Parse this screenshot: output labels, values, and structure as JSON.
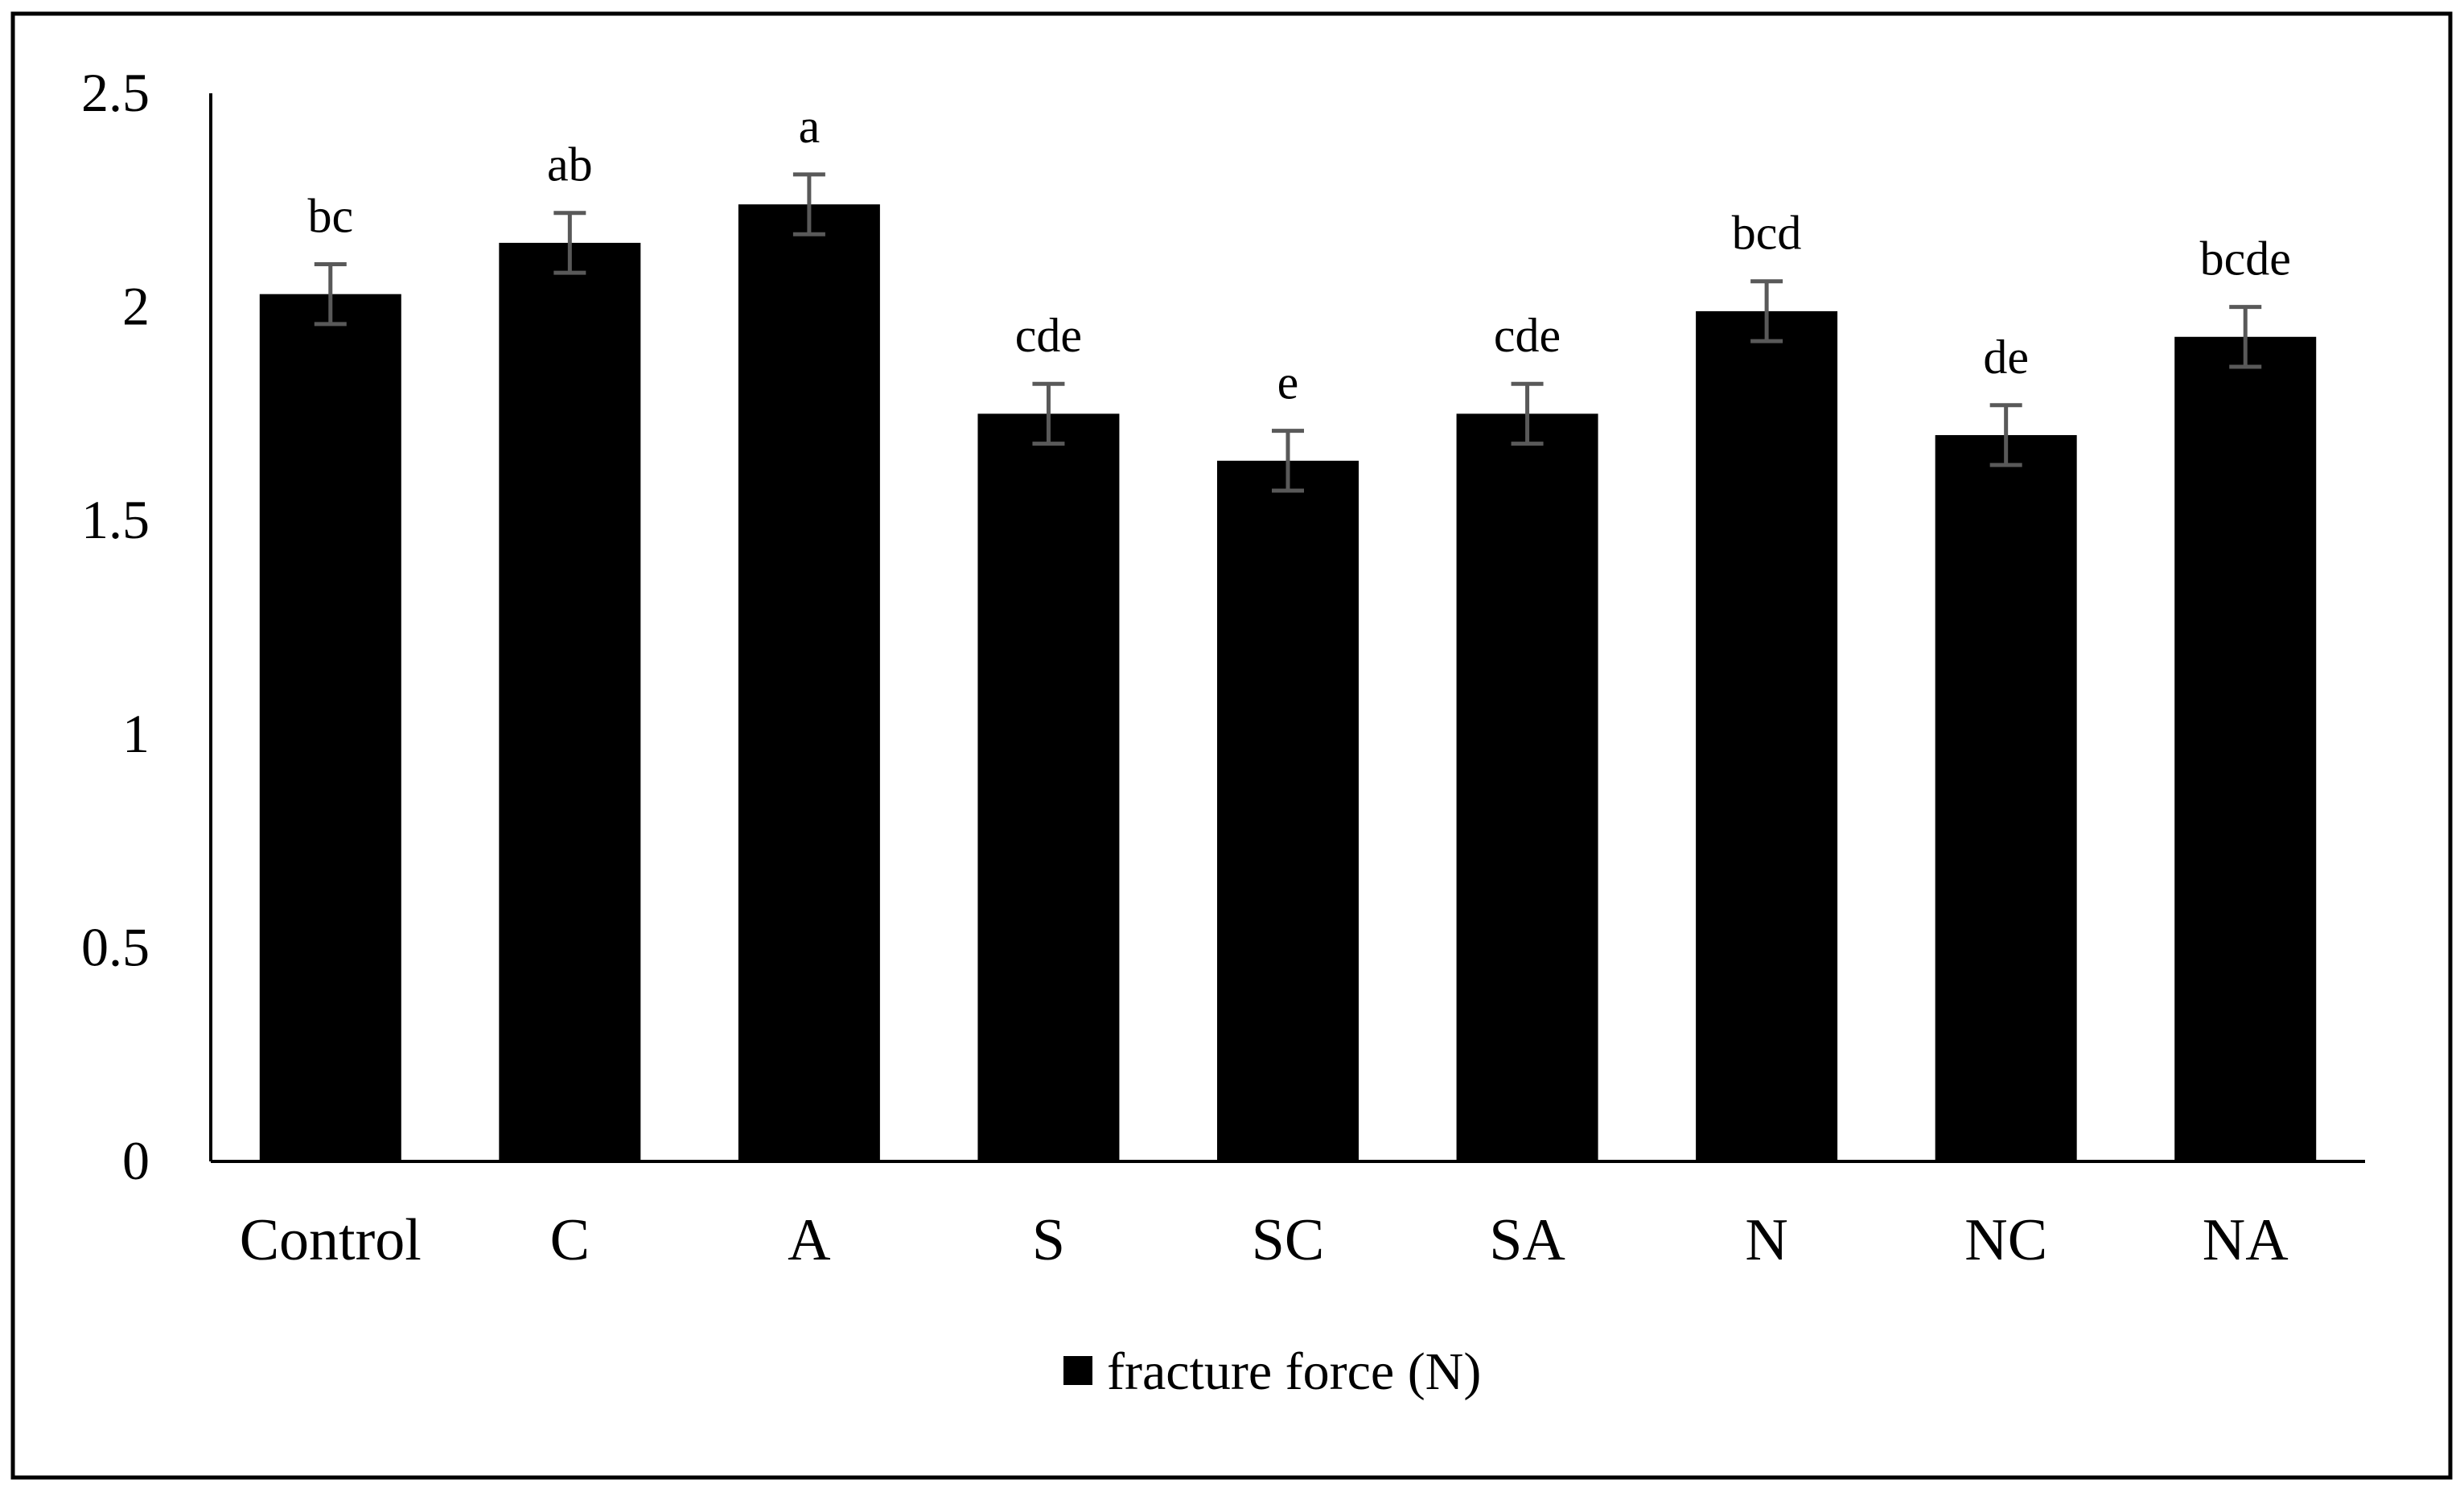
{
  "chart_data": {
    "type": "bar",
    "categories": [
      "Control",
      "C",
      "A",
      "S",
      "SC",
      "SA",
      "N",
      "NC",
      "NA"
    ],
    "series": [
      {
        "name": "fracture force (N)",
        "values": [
          2.03,
          2.15,
          2.24,
          1.75,
          1.64,
          1.75,
          1.99,
          1.7,
          1.93
        ],
        "errors": [
          0.07,
          0.07,
          0.07,
          0.07,
          0.07,
          0.07,
          0.07,
          0.07,
          0.07
        ],
        "significance": [
          "bc",
          "ab",
          "a",
          "cde",
          "e",
          "cde",
          "bcd",
          "de",
          "bcde"
        ]
      }
    ],
    "ylim": [
      0,
      2.5
    ],
    "yticks": [
      "0",
      "0.5",
      "1",
      "1.5",
      "2",
      "2.5"
    ],
    "title": "",
    "xlabel": "",
    "ylabel": "",
    "grid": false,
    "legend_position": "bottom",
    "colors": {
      "bar": "#000000",
      "error_bar": "#595959",
      "frame": "#000000"
    }
  }
}
